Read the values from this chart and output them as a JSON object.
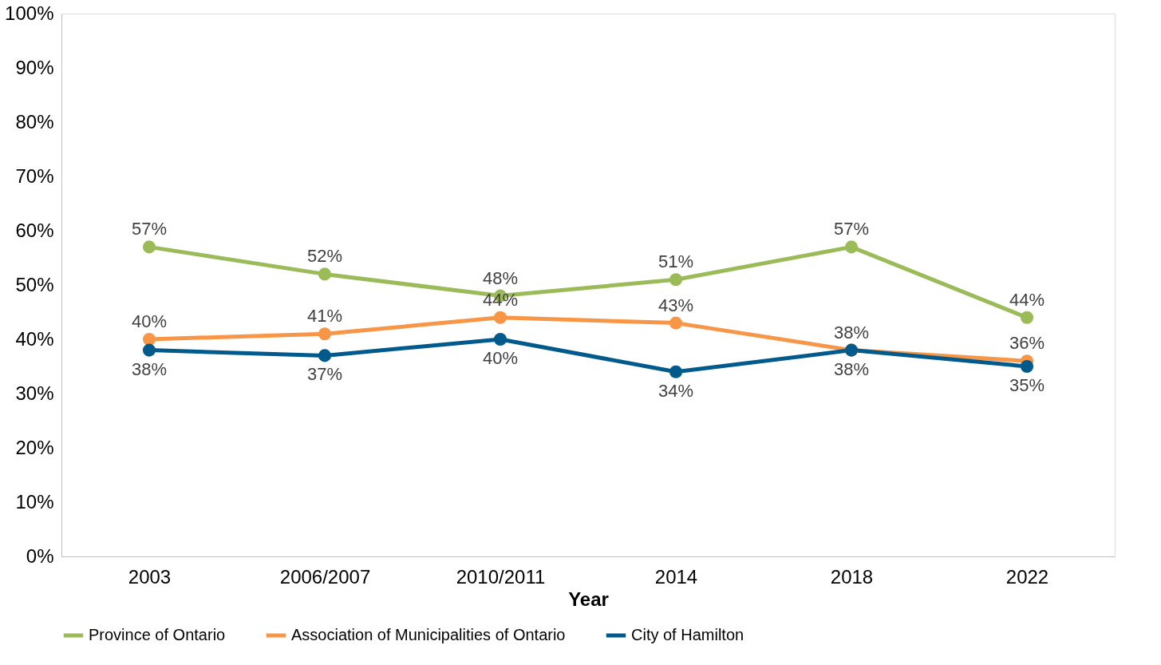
{
  "chart_data": {
    "type": "line",
    "xlabel": "Year",
    "categories": [
      "2003",
      "2006/2007",
      "2010/2011",
      "2014",
      "2018",
      "2022"
    ],
    "series": [
      {
        "name": "Province of Ontario",
        "color": "#9bbb59",
        "values": [
          57,
          52,
          48,
          51,
          57,
          44
        ],
        "value_labels": [
          "57%",
          "52%",
          "48%",
          "51%",
          "57%",
          "44%"
        ]
      },
      {
        "name": "Association of Municipalities of Ontario",
        "color": "#f79646",
        "values": [
          40,
          41,
          44,
          43,
          38,
          36
        ],
        "value_labels": [
          "40%",
          "41%",
          "44%",
          "43%",
          "38%",
          "36%"
        ]
      },
      {
        "name": "City of Hamilton",
        "color": "#005a8c",
        "values": [
          38,
          37,
          40,
          34,
          38,
          35
        ],
        "value_labels": [
          "38%",
          "37%",
          "40%",
          "34%",
          "38%",
          "35%"
        ]
      }
    ],
    "ylim": [
      0,
      100
    ],
    "yticks": [
      {
        "value": 0,
        "label": "0%"
      },
      {
        "value": 10,
        "label": "10%"
      },
      {
        "value": 20,
        "label": "20%"
      },
      {
        "value": 30,
        "label": "30%"
      },
      {
        "value": 40,
        "label": "40%"
      },
      {
        "value": 50,
        "label": "50%"
      },
      {
        "value": 60,
        "label": "60%"
      },
      {
        "value": 70,
        "label": "70%"
      },
      {
        "value": 80,
        "label": "80%"
      },
      {
        "value": 90,
        "label": "90%"
      },
      {
        "value": 100,
        "label": "100%"
      }
    ],
    "legend": "bottom",
    "marker": "circle",
    "line_style": "solid",
    "grid": false
  }
}
